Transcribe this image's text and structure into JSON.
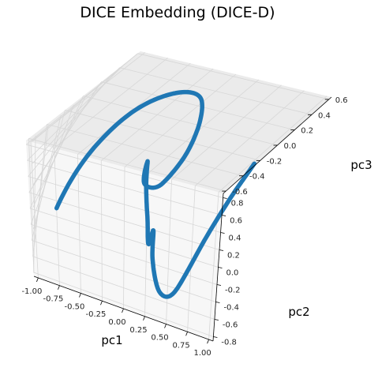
{
  "chart_data": {
    "type": "line3d",
    "title": "DICE Embedding (DICE-D)",
    "xlabel": "pc1",
    "ylabel": "pc2",
    "zlabel": "pc3",
    "xlim": [
      -1.05,
      1.05
    ],
    "ylim": [
      -0.85,
      0.85
    ],
    "zlim": [
      -0.63,
      0.63
    ],
    "xticks": [
      "-1.00",
      "-0.75",
      "-0.50",
      "-0.25",
      "0.00",
      "0.25",
      "0.50",
      "0.75",
      "1.00"
    ],
    "yticks": [
      "-0.8",
      "-0.6",
      "-0.4",
      "-0.2",
      "0.0",
      "0.2",
      "0.4",
      "0.6",
      "0.8"
    ],
    "zticks": [
      "-0.6",
      "-0.4",
      "-0.2",
      "0.0",
      "0.2",
      "0.4",
      "0.6"
    ],
    "grid": true,
    "line_color": "#1f77b4",
    "pane_colors": {
      "xpane": "#f2f2f2",
      "ypane": "#ebebeb",
      "zpane": "#f7f7f7",
      "grid": "#d7d7d7"
    },
    "series": [
      {
        "x": [
          -0.86,
          -0.72,
          -0.55,
          -0.32,
          -0.08,
          0.12,
          0.2,
          0.12,
          -0.05,
          -0.12,
          -0.02,
          0.12,
          0.2,
          0.22,
          0.28,
          0.4,
          0.55,
          0.7,
          0.84,
          0.91,
          0.93
        ],
        "y": [
          -0.28,
          0.05,
          0.32,
          0.5,
          0.55,
          0.45,
          0.3,
          0.1,
          -0.05,
          -0.02,
          -0.15,
          -0.3,
          -0.38,
          -0.38,
          -0.45,
          -0.6,
          -0.62,
          -0.48,
          -0.25,
          -0.02,
          0.08
        ],
        "z": [
          -0.34,
          0.1,
          0.42,
          0.55,
          0.52,
          0.32,
          0.08,
          -0.1,
          -0.02,
          0.18,
          0.05,
          -0.15,
          -0.32,
          -0.18,
          -0.4,
          -0.55,
          -0.52,
          -0.32,
          0.0,
          0.25,
          0.38
        ]
      }
    ]
  }
}
